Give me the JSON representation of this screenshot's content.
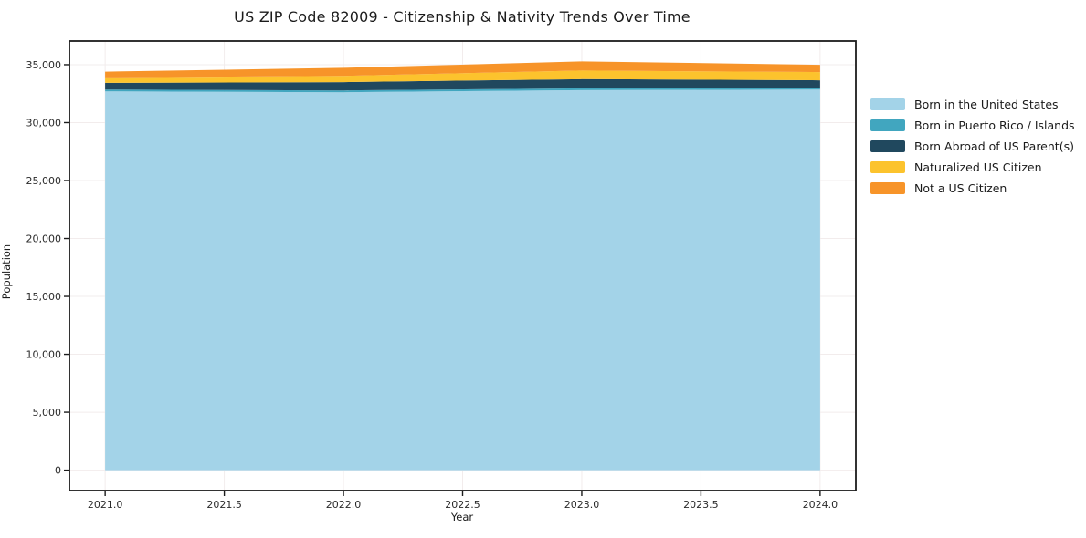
{
  "figure": {
    "title": "US ZIP Code 82009 - Citizenship & Nativity Trends Over Time",
    "xlabel": "Year",
    "ylabel": "Population"
  },
  "chart_data": {
    "type": "area",
    "stacked": true,
    "title": "US ZIP Code 82009 - Citizenship & Nativity Trends Over Time",
    "xlabel": "Year",
    "ylabel": "Population",
    "x": [
      2021,
      2022,
      2023,
      2024
    ],
    "series": [
      {
        "name": "Born in the United States",
        "color": "#a3d3e8",
        "values": [
          32700,
          32620,
          32800,
          32860
        ]
      },
      {
        "name": "Born in Puerto Rico / Islands",
        "color": "#41a6bf",
        "values": [
          160,
          160,
          160,
          160
        ]
      },
      {
        "name": "Born Abroad of US Parent(s)",
        "color": "#20485e",
        "values": [
          570,
          710,
          790,
          630
        ]
      },
      {
        "name": "Naturalized US Citizen",
        "color": "#fcc32d",
        "values": [
          470,
          550,
          740,
          710
        ]
      },
      {
        "name": "Not a US Citizen",
        "color": "#f79429",
        "values": [
          500,
          690,
          790,
          630
        ]
      }
    ],
    "totals": [
      34400,
      34730,
      35280,
      34990
    ],
    "xlim": [
      2020.85,
      2024.15
    ],
    "ylim": [
      -1764,
      37044
    ],
    "xticks": [
      {
        "v": 2021.0,
        "label": "2021.0"
      },
      {
        "v": 2021.5,
        "label": "2021.5"
      },
      {
        "v": 2022.0,
        "label": "2022.0"
      },
      {
        "v": 2022.5,
        "label": "2022.5"
      },
      {
        "v": 2023.0,
        "label": "2023.0"
      },
      {
        "v": 2023.5,
        "label": "2023.5"
      },
      {
        "v": 2024.0,
        "label": "2024.0"
      }
    ],
    "yticks": [
      {
        "v": 0,
        "label": "0"
      },
      {
        "v": 5000,
        "label": "5,000"
      },
      {
        "v": 10000,
        "label": "10,000"
      },
      {
        "v": 15000,
        "label": "15,000"
      },
      {
        "v": 20000,
        "label": "20,000"
      },
      {
        "v": 25000,
        "label": "25,000"
      },
      {
        "v": 30000,
        "label": "30,000"
      },
      {
        "v": 35000,
        "label": "35,000"
      }
    ],
    "grid": true,
    "legend_position": "right-outside"
  },
  "colors": {
    "background": "#ffffff",
    "grid": "#f2ecec",
    "spine": "#1c1c1c",
    "tick_text": "#2a2a2a"
  }
}
